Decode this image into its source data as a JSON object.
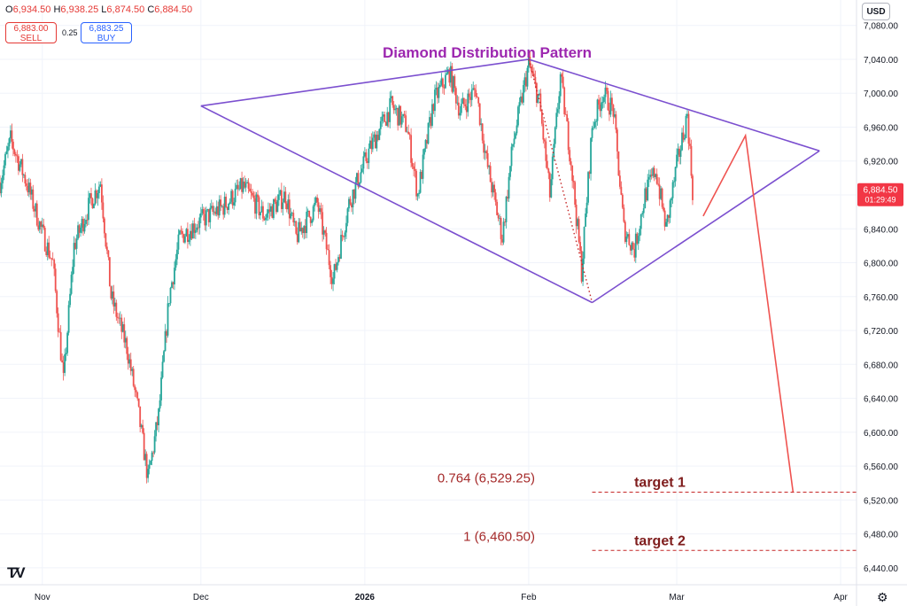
{
  "header": {
    "open": "6,934.50",
    "high": "6,938.25",
    "low": "6,874.50",
    "close": "6,884.50",
    "open_prefix": "O",
    "high_prefix": "H",
    "low_prefix": "L",
    "close_prefix": "C",
    "sell_price": "6,883.00",
    "sell_label": "SELL",
    "buy_price": "6,883.25",
    "buy_label": "BUY",
    "spread": "0.25",
    "currency": "USD"
  },
  "colors": {
    "up": "#26a69a",
    "down": "#ef5350",
    "pattern": "#7b4fcf",
    "projection": "#ef5350",
    "target_text": "#7f1d1d"
  },
  "icons": [
    "tradingview-logo-icon",
    "gear-icon"
  ],
  "chart_data": {
    "type": "candlestick",
    "title": "Diamond Distribution Pattern",
    "ylim": [
      6420,
      7110
    ],
    "y_ticks": [
      7080,
      7040,
      7000,
      6960,
      6920,
      6880,
      6840,
      6800,
      6760,
      6720,
      6680,
      6640,
      6600,
      6560,
      6520,
      6480,
      6440
    ],
    "y_tick_labels": [
      "7,080.00",
      "7,040.00",
      "7,000.00",
      "6,960.00",
      "6,920.00",
      "6,880.00",
      "6,840.00",
      "6,800.00",
      "6,760.00",
      "6,720.00",
      "6,680.00",
      "6,640.00",
      "6,600.00",
      "6,560.00",
      "6,520.00",
      "6,480.00",
      "6,440.00"
    ],
    "x_range": [
      "2025-10-24",
      "2026-04-04"
    ],
    "x_ticks": [
      {
        "date": "2025-11-01",
        "label": "Nov"
      },
      {
        "date": "2025-12-01",
        "label": "Dec"
      },
      {
        "date": "2026-01-01",
        "label": "2026"
      },
      {
        "date": "2026-02-01",
        "label": "Feb"
      },
      {
        "date": "2026-03-01",
        "label": "Mar"
      },
      {
        "date": "2026-04-01",
        "label": "Apr"
      }
    ],
    "last_price": {
      "value": 6884.5,
      "label": "6,884.50",
      "countdown": "01:29:49"
    },
    "price_path": [
      {
        "date": "2025-10-24",
        "value": 6895
      },
      {
        "date": "2025-10-26",
        "value": 6945
      },
      {
        "date": "2025-10-29",
        "value": 6895
      },
      {
        "date": "2025-11-01",
        "value": 6835
      },
      {
        "date": "2025-11-03",
        "value": 6800
      },
      {
        "date": "2025-11-05",
        "value": 6660
      },
      {
        "date": "2025-11-07",
        "value": 6820
      },
      {
        "date": "2025-11-10",
        "value": 6870
      },
      {
        "date": "2025-11-12",
        "value": 6895
      },
      {
        "date": "2025-11-14",
        "value": 6760
      },
      {
        "date": "2025-11-17",
        "value": 6700
      },
      {
        "date": "2025-11-19",
        "value": 6630
      },
      {
        "date": "2025-11-21",
        "value": 6545
      },
      {
        "date": "2025-11-23",
        "value": 6620
      },
      {
        "date": "2025-11-25",
        "value": 6760
      },
      {
        "date": "2025-11-27",
        "value": 6830
      },
      {
        "date": "2025-12-01",
        "value": 6850
      },
      {
        "date": "2025-12-05",
        "value": 6865
      },
      {
        "date": "2025-12-09",
        "value": 6890
      },
      {
        "date": "2025-12-13",
        "value": 6855
      },
      {
        "date": "2025-12-17",
        "value": 6880
      },
      {
        "date": "2025-12-19",
        "value": 6830
      },
      {
        "date": "2025-12-23",
        "value": 6870
      },
      {
        "date": "2025-12-26",
        "value": 6780
      },
      {
        "date": "2025-12-29",
        "value": 6870
      },
      {
        "date": "2026-01-02",
        "value": 6935
      },
      {
        "date": "2026-01-06",
        "value": 6985
      },
      {
        "date": "2026-01-09",
        "value": 6960
      },
      {
        "date": "2026-01-11",
        "value": 6880
      },
      {
        "date": "2026-01-14",
        "value": 6990
      },
      {
        "date": "2026-01-17",
        "value": 7025
      },
      {
        "date": "2026-01-19",
        "value": 6980
      },
      {
        "date": "2026-01-22",
        "value": 7005
      },
      {
        "date": "2026-01-24",
        "value": 6920
      },
      {
        "date": "2026-01-27",
        "value": 6830
      },
      {
        "date": "2026-01-29",
        "value": 6940
      },
      {
        "date": "2026-02-01",
        "value": 7035
      },
      {
        "date": "2026-02-03",
        "value": 6990
      },
      {
        "date": "2026-02-05",
        "value": 6880
      },
      {
        "date": "2026-02-07",
        "value": 7020
      },
      {
        "date": "2026-02-09",
        "value": 6920
      },
      {
        "date": "2026-02-11",
        "value": 6790
      },
      {
        "date": "2026-02-13",
        "value": 6960
      },
      {
        "date": "2026-02-15",
        "value": 7000
      },
      {
        "date": "2026-02-17",
        "value": 6980
      },
      {
        "date": "2026-02-19",
        "value": 6840
      },
      {
        "date": "2026-02-21",
        "value": 6815
      },
      {
        "date": "2026-02-23",
        "value": 6880
      },
      {
        "date": "2026-02-25",
        "value": 6910
      },
      {
        "date": "2026-02-27",
        "value": 6840
      },
      {
        "date": "2026-03-01",
        "value": 6915
      },
      {
        "date": "2026-03-03",
        "value": 6975
      },
      {
        "date": "2026-03-04",
        "value": 6884.5
      }
    ],
    "pattern_lines": [
      {
        "name": "diamond-upper-left",
        "from": {
          "date": "2025-12-01",
          "value": 6985
        },
        "to": {
          "date": "2026-02-01",
          "value": 7040
        }
      },
      {
        "date_note": "",
        "name": "diamond-upper-right",
        "from": {
          "date": "2026-02-01",
          "value": 7040
        },
        "to": {
          "date": "2026-03-28",
          "value": 6932
        }
      },
      {
        "name": "diamond-lower-left",
        "from": {
          "date": "2025-12-01",
          "value": 6985
        },
        "to": {
          "date": "2026-02-13",
          "value": 6753
        }
      },
      {
        "name": "diamond-lower-right",
        "from": {
          "date": "2026-02-13",
          "value": 6753
        },
        "to": {
          "date": "2026-03-28",
          "value": 6932
        }
      }
    ],
    "projection_path": [
      {
        "date": "2026-03-06",
        "value": 6855
      },
      {
        "date": "2026-03-14",
        "value": 6950
      },
      {
        "date": "2026-03-23",
        "value": 6529.25
      }
    ],
    "dotted_path": [
      {
        "date": "2026-02-01",
        "value": 7040
      },
      {
        "date": "2026-02-13",
        "value": 6753
      }
    ],
    "targets": [
      {
        "ratio_label": "0.764 (6,529.25)",
        "value": 6529.25,
        "label": "target 1",
        "from_date": "2026-02-13"
      },
      {
        "ratio_label": "1 (6,460.50)",
        "value": 6460.5,
        "label": "target 2",
        "from_date": "2026-02-13"
      }
    ]
  }
}
